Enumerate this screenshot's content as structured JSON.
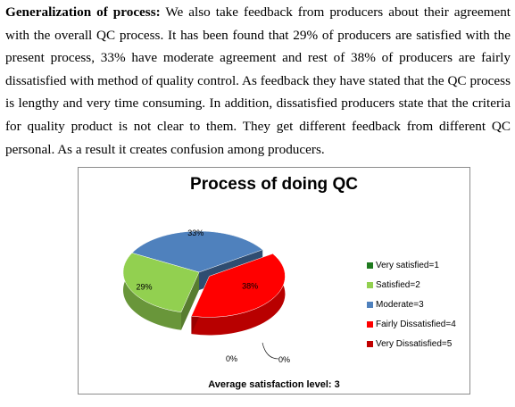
{
  "document": {
    "heading": "Generalization of process:",
    "body": " We also take feedback from producers about their agreement with the overall QC process. It has been found that 29% of producers are satisfied with the present process, 33% have moderate agreement and rest of 38% of producers are fairly dissatisfied with method of quality control. As feedback they have stated that the QC process is lengthy and very time consuming. In addition, dissatisfied producers state that the criteria for quality product is not clear to them. They get different feedback from different QC personal. As a result it creates confusion among producers."
  },
  "chart_data": {
    "type": "pie",
    "title": "Process of doing QC",
    "footer": "Average satisfaction level: 3",
    "legend_position": "right",
    "slices": [
      {
        "name": "Very satisfied=1",
        "value": 0,
        "label": "0%",
        "color": "#1f7a1f"
      },
      {
        "name": "Satisfied=2",
        "value": 29,
        "label": "29%",
        "color": "#92d050"
      },
      {
        "name": "Moderate=3",
        "value": 33,
        "label": "33%",
        "color": "#4f81bd"
      },
      {
        "name": "Fairly Dissatisfied=4",
        "value": 38,
        "label": "38%",
        "color": "#ff0000"
      },
      {
        "name": "Very Dissatisfied=5",
        "value": 0,
        "label": "0%",
        "color": "#c00000"
      }
    ]
  }
}
